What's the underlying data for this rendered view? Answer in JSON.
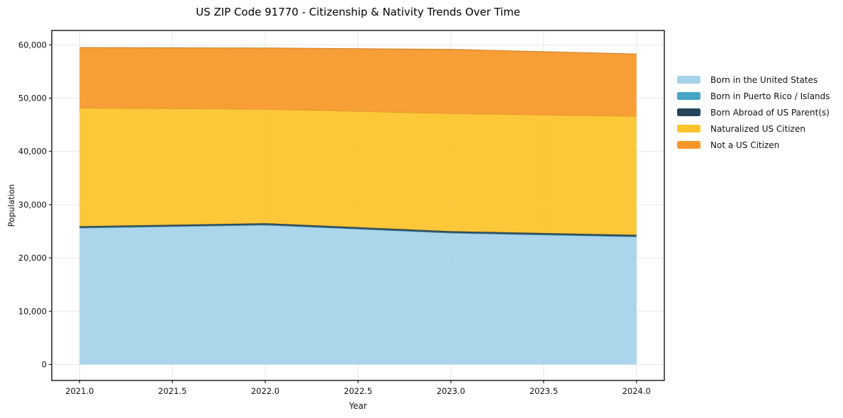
{
  "figure": {
    "background": "#ffffff",
    "frame_color": "#000000"
  },
  "chart_data": {
    "type": "area",
    "stacked": true,
    "title": "US ZIP Code 91770 - Citizenship & Nativity Trends Over Time",
    "xlabel": "Year",
    "ylabel": "Population",
    "x": [
      2021,
      2022,
      2023,
      2024
    ],
    "series": [
      {
        "name": "Born in the United States",
        "color": "#a4d2e8",
        "values": [
          25600,
          26150,
          24650,
          23950
        ]
      },
      {
        "name": "Born in Puerto Rico / Islands",
        "color": "#46a4c4",
        "values": [
          60,
          60,
          60,
          60
        ]
      },
      {
        "name": "Born Abroad of US Parent(s)",
        "color": "#25465a",
        "values": [
          280,
          300,
          300,
          320
        ]
      },
      {
        "name": "Naturalized US Citizen",
        "color": "#fdc32b",
        "values": [
          22200,
          21400,
          22100,
          22250
        ]
      },
      {
        "name": "Not a US Citizen",
        "color": "#f79728",
        "values": [
          11350,
          11500,
          12050,
          11700
        ]
      }
    ],
    "totals": [
      59490,
      59410,
      59160,
      58280
    ],
    "xticks": [
      2021.0,
      2021.5,
      2022.0,
      2022.5,
      2023.0,
      2023.5,
      2024.0
    ],
    "yticks": [
      0,
      10000,
      20000,
      30000,
      40000,
      50000,
      60000
    ],
    "xlim": [
      2020.85,
      2024.15
    ],
    "ylim": [
      -3000,
      62700
    ],
    "grid": true,
    "grid_color": "#e7e7e7",
    "area_opacity": 0.93,
    "legend_position": "right-outside"
  }
}
